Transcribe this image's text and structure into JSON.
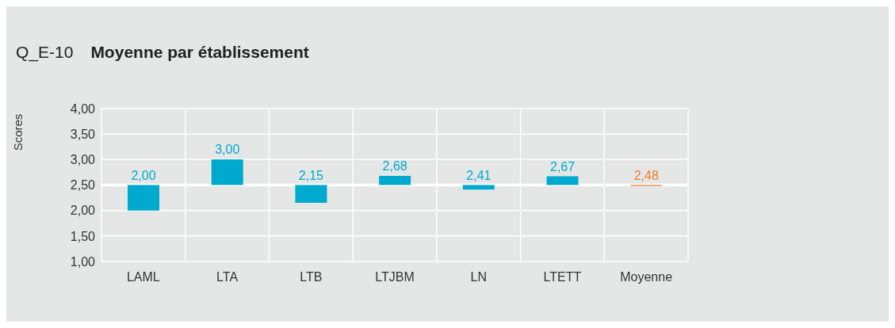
{
  "chart_data": {
    "type": "bar",
    "title": "Moyenne par établissement",
    "subtitle": "Q_E-10",
    "ylabel": "Scores",
    "categories": [
      "LAML",
      "LTA",
      "LTB",
      "LTJBM",
      "LN",
      "LTETT",
      "Moyenne"
    ],
    "base": [
      2.5,
      2.5,
      2.5,
      2.5,
      2.5,
      2.5,
      2.5
    ],
    "values": [
      -0.5,
      0.5,
      -0.35,
      0.18,
      -0.09,
      0.17,
      -0.02
    ],
    "value_labels": [
      "2,00",
      "3,00",
      "2,15",
      "2,68",
      "2,41",
      "2,67",
      "2,48"
    ],
    "colors": [
      "#00a9ce",
      "#00a9ce",
      "#00a9ce",
      "#00a9ce",
      "#00a9ce",
      "#00a9ce",
      "#f07d2d"
    ],
    "ylim": [
      1,
      4
    ],
    "yticks": [
      {
        "value": 1,
        "label": "1,00"
      },
      {
        "value": 1.5,
        "label": "1,50"
      },
      {
        "value": 2,
        "label": "2,00"
      },
      {
        "value": 2.5,
        "label": "2,50"
      },
      {
        "value": 3,
        "label": "3,00"
      },
      {
        "value": 3.5,
        "label": "3,50"
      },
      {
        "value": 4,
        "label": "4,00"
      }
    ],
    "ref_lines": [
      {
        "axis": "y",
        "value": 2.5,
        "color": "#ffffff"
      }
    ],
    "grid": true
  }
}
